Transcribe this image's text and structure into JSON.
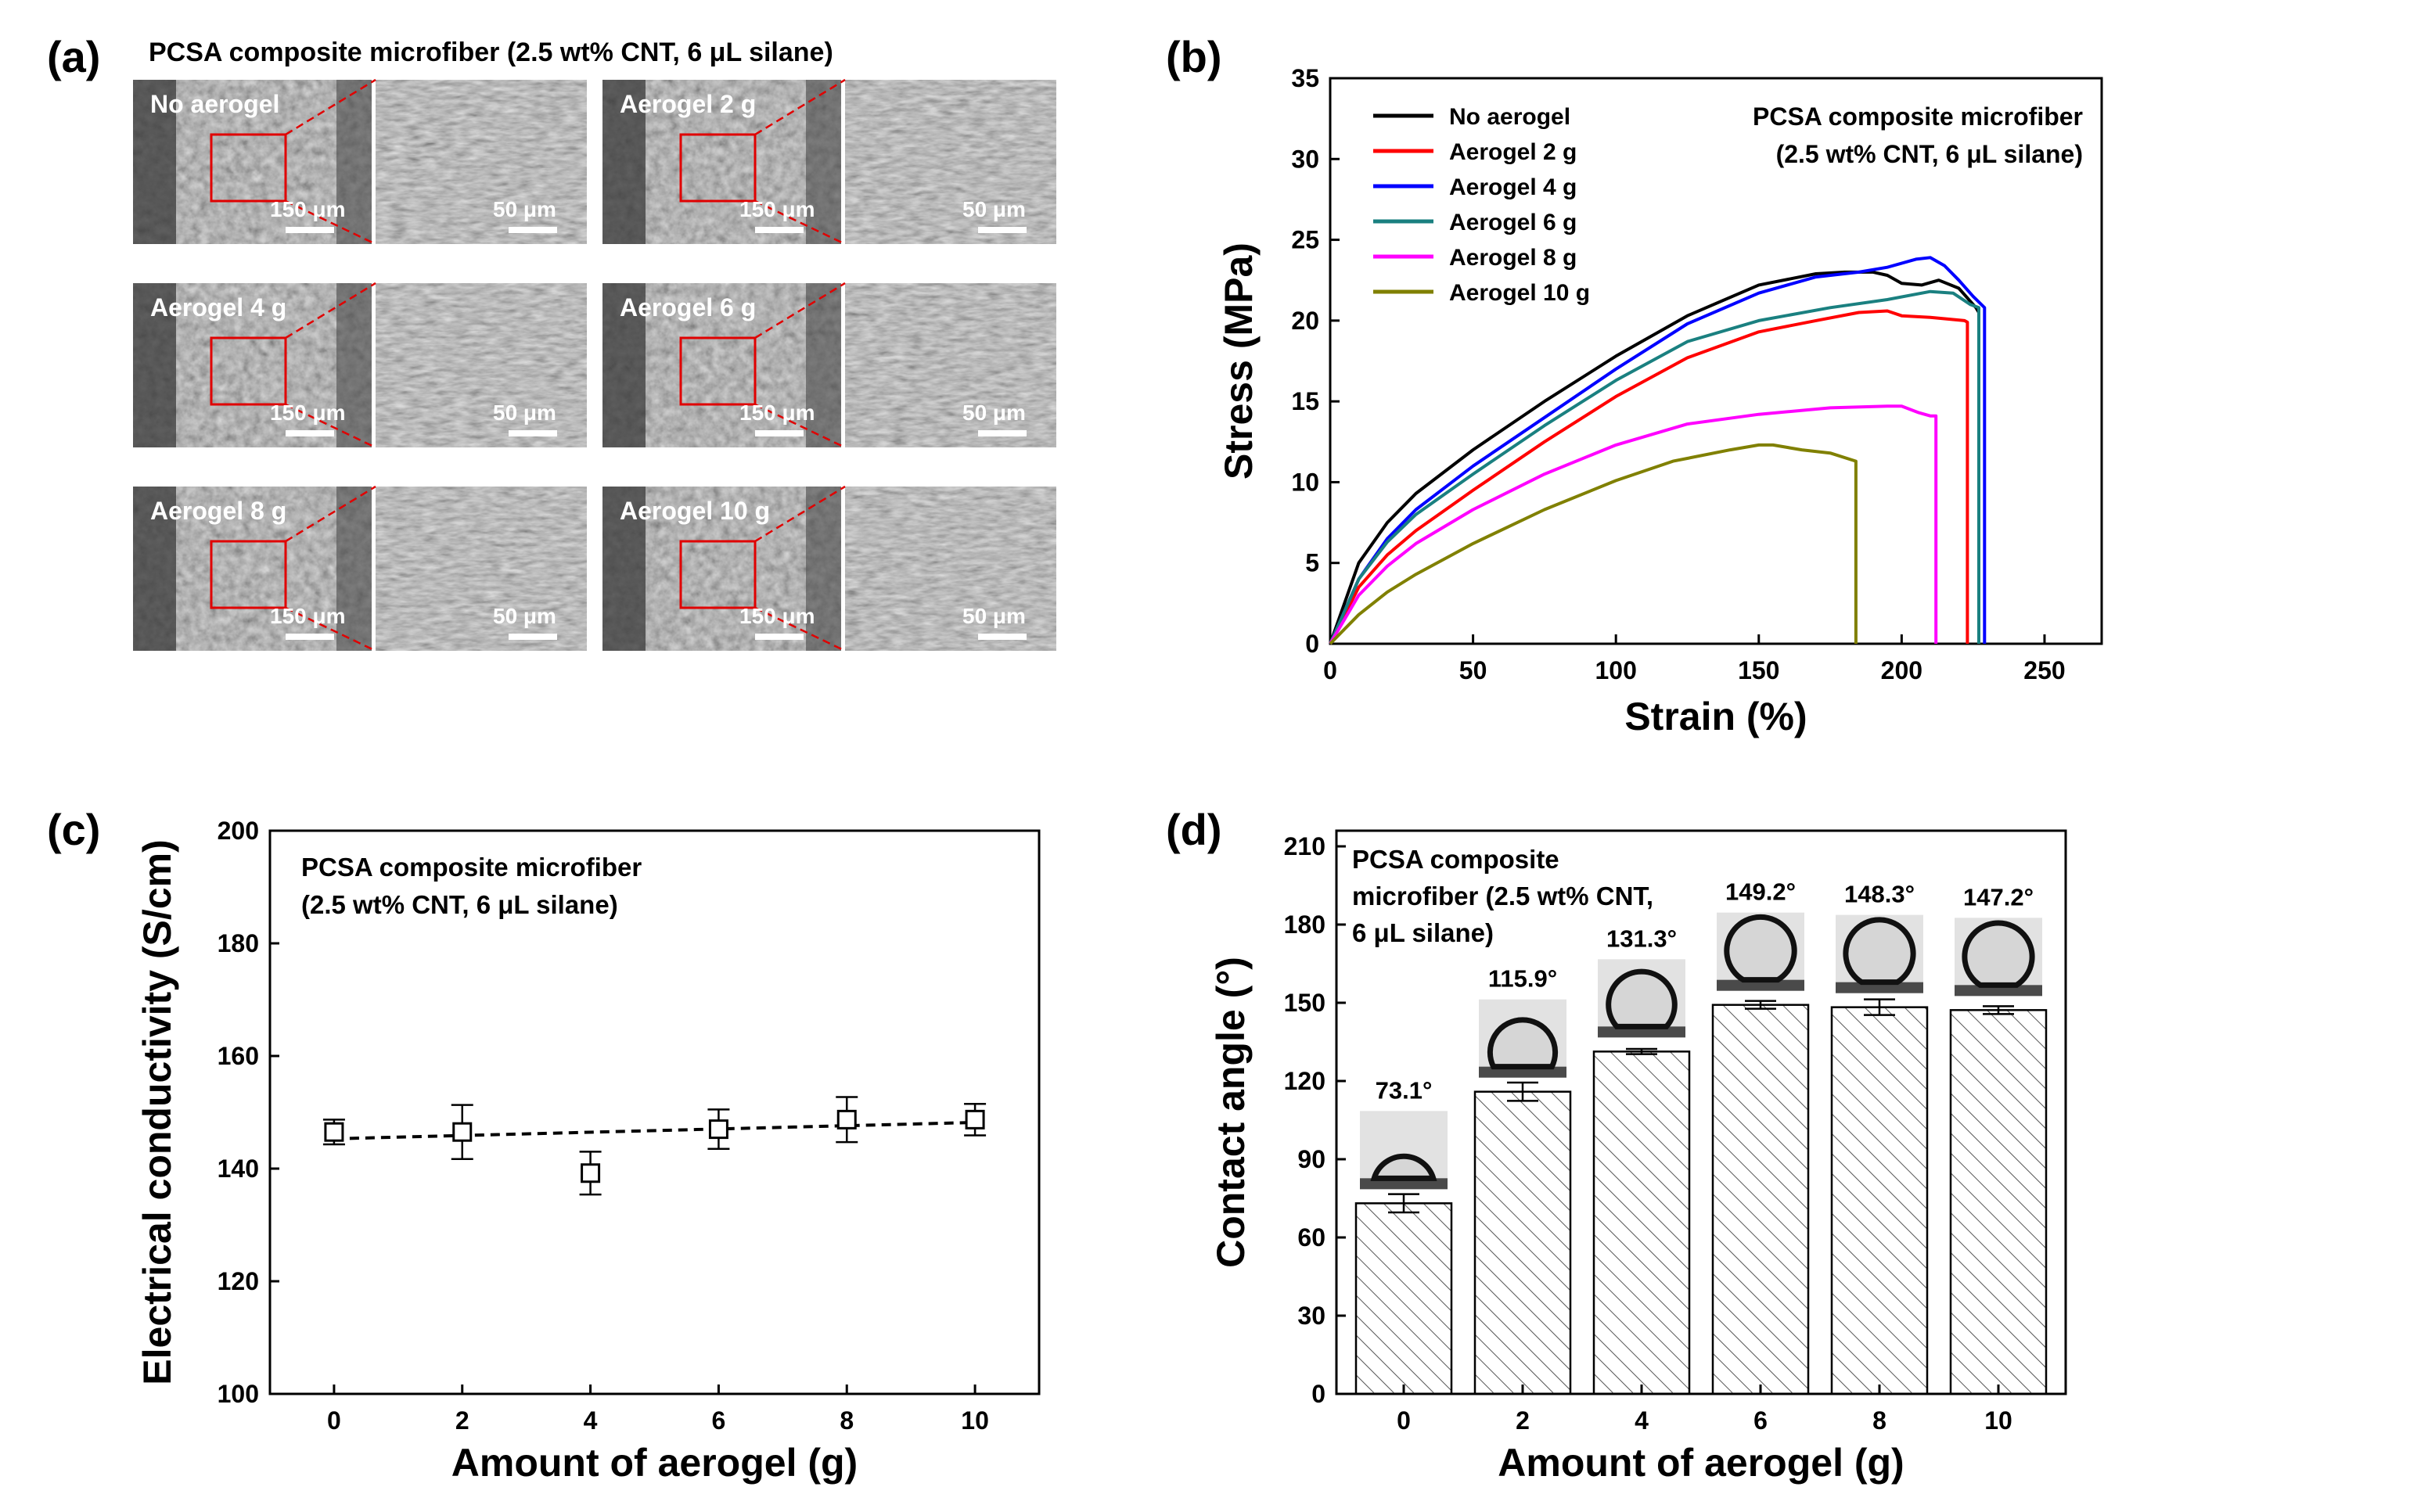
{
  "panel_a": {
    "label": "(a)",
    "title": "PCSA composite microfiber (2.5 wt% CNT, 6 μL silane)",
    "scale_low": "150 μm",
    "scale_high": "50 μm",
    "images": [
      {
        "label": "No aerogel"
      },
      {
        "label": "Aerogel 2 g"
      },
      {
        "label": "Aerogel 4 g"
      },
      {
        "label": "Aerogel 6 g"
      },
      {
        "label": "Aerogel 8 g"
      },
      {
        "label": "Aerogel 10 g"
      }
    ]
  },
  "panel_labels": {
    "b": "(b)",
    "c": "(c)",
    "d": "(d)"
  },
  "chart_data": [
    {
      "panel": "b",
      "type": "line",
      "xlabel": "Strain (%)",
      "ylabel": "Stress (MPa)",
      "xlim": [
        0,
        270
      ],
      "ylim": [
        0,
        35
      ],
      "xticks": [
        0,
        50,
        100,
        150,
        200,
        250
      ],
      "yticks": [
        0,
        5,
        10,
        15,
        20,
        25,
        30,
        35
      ],
      "annotation": [
        "PCSA composite microfiber",
        "(2.5 wt% CNT, 6 μL silane)"
      ],
      "legend_position": "top-left",
      "series": [
        {
          "name": "No aerogel",
          "color": "#000000",
          "x": [
            0,
            10,
            20,
            30,
            50,
            75,
            100,
            125,
            150,
            170,
            180,
            190,
            195,
            200,
            207,
            213,
            220,
            226,
            227,
            227
          ],
          "y": [
            0,
            5,
            7.5,
            9.3,
            12,
            15,
            17.8,
            20.3,
            22.2,
            22.9,
            23.0,
            23.0,
            22.8,
            22.3,
            22.2,
            22.5,
            22.0,
            20.8,
            20.5,
            0
          ]
        },
        {
          "name": "Aerogel 2 g",
          "color": "#ff0000",
          "x": [
            0,
            10,
            20,
            30,
            50,
            75,
            100,
            125,
            150,
            170,
            185,
            195,
            200,
            210,
            222,
            223,
            223
          ],
          "y": [
            0,
            3.5,
            5.5,
            7,
            9.5,
            12.5,
            15.3,
            17.7,
            19.3,
            20.0,
            20.5,
            20.6,
            20.3,
            20.2,
            20.0,
            19.9,
            0
          ]
        },
        {
          "name": "Aerogel 4 g",
          "color": "#0000ff",
          "x": [
            0,
            10,
            20,
            30,
            50,
            75,
            100,
            125,
            150,
            170,
            185,
            195,
            205,
            210,
            215,
            220,
            225,
            229,
            229
          ],
          "y": [
            0,
            4,
            6.5,
            8.3,
            11,
            14,
            17,
            19.8,
            21.7,
            22.7,
            23.0,
            23.3,
            23.8,
            23.9,
            23.4,
            22.5,
            21.5,
            20.8,
            0
          ]
        },
        {
          "name": "Aerogel 6 g",
          "color": "#1a8080",
          "x": [
            0,
            10,
            20,
            30,
            50,
            75,
            100,
            125,
            150,
            175,
            195,
            210,
            218,
            224,
            227,
            227
          ],
          "y": [
            0,
            4,
            6.3,
            8,
            10.5,
            13.5,
            16.3,
            18.7,
            20.0,
            20.8,
            21.3,
            21.8,
            21.7,
            21.0,
            20.8,
            0
          ]
        },
        {
          "name": "Aerogel 8 g",
          "color": "#ff00ff",
          "x": [
            0,
            10,
            20,
            30,
            50,
            75,
            100,
            125,
            150,
            175,
            195,
            200,
            206,
            210,
            212,
            212
          ],
          "y": [
            0,
            3,
            4.8,
            6.2,
            8.3,
            10.5,
            12.3,
            13.6,
            14.2,
            14.6,
            14.7,
            14.7,
            14.3,
            14.1,
            14.1,
            0
          ]
        },
        {
          "name": "Aerogel 10 g",
          "color": "#808000",
          "x": [
            0,
            10,
            20,
            30,
            50,
            75,
            100,
            120,
            140,
            150,
            155,
            165,
            175,
            184,
            184
          ],
          "y": [
            0,
            1.8,
            3.2,
            4.3,
            6.2,
            8.3,
            10.1,
            11.3,
            12.0,
            12.3,
            12.3,
            12.0,
            11.8,
            11.3,
            0
          ]
        }
      ]
    },
    {
      "panel": "c",
      "type": "scatter",
      "xlabel": "Amount of aerogel (g)",
      "ylabel": "Electrical conductivity (S/cm)",
      "xlim": [
        -1,
        11
      ],
      "ylim": [
        100,
        200
      ],
      "xticks": [
        0,
        2,
        4,
        6,
        8,
        10
      ],
      "yticks": [
        100,
        120,
        140,
        160,
        180,
        200
      ],
      "annotation": [
        "PCSA composite microfiber",
        "(2.5 wt% CNT, 6 μL silane)"
      ],
      "x": [
        0,
        2,
        4,
        6,
        8,
        10
      ],
      "y": [
        146.5,
        146.5,
        139.2,
        147.0,
        148.7,
        148.7
      ],
      "error": [
        2.2,
        4.8,
        3.8,
        3.5,
        4.0,
        2.8
      ],
      "fit": {
        "style": "dashed",
        "x": [
          0,
          10
        ],
        "y": [
          145.3,
          148.2
        ]
      }
    },
    {
      "panel": "d",
      "type": "bar",
      "xlabel": "Amount of aerogel (g)",
      "ylabel": "Contact angle (°)",
      "ylim": [
        0,
        210
      ],
      "yticks": [
        0,
        30,
        60,
        90,
        120,
        150,
        180,
        210
      ],
      "categories": [
        "0",
        "2",
        "4",
        "6",
        "8",
        "10"
      ],
      "values": [
        73.1,
        115.9,
        131.3,
        149.2,
        148.3,
        147.2
      ],
      "error": [
        3.5,
        3.5,
        1.0,
        1.5,
        3.0,
        1.5
      ],
      "value_labels": [
        "73.1°",
        "115.9°",
        "131.3°",
        "149.2°",
        "148.3°",
        "147.2°"
      ],
      "fill": "hatched",
      "annotation": [
        "PCSA composite",
        "microfiber (2.5 wt% CNT,",
        "6 μL silane)"
      ]
    }
  ]
}
